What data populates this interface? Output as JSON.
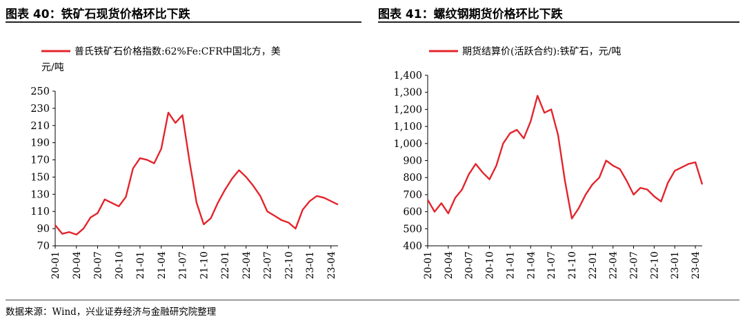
{
  "panels": [
    {
      "title": "图表 40：铁矿石现货价格环比下跌"
    },
    {
      "title": "图表 41：螺纹钢期货价格环比下跌"
    }
  ],
  "source": "数据来源：Wind，兴业证券经济与金融研究院整理",
  "chart_data": [
    {
      "type": "line",
      "legend_line1": "普氏铁矿石价格指数:62%Fe:CFR中国北方，美",
      "legend_line2": "元/吨",
      "legend_position": "top",
      "color": "#e3242b",
      "x_ticks": [
        "20-01",
        "20-04",
        "20-07",
        "20-10",
        "21-01",
        "21-04",
        "21-07",
        "21-10",
        "22-01",
        "22-04",
        "22-07",
        "22-10",
        "23-01",
        "23-04"
      ],
      "y_ticks": [
        "70",
        "90",
        "110",
        "130",
        "150",
        "170",
        "190",
        "210",
        "230",
        "250"
      ],
      "ylim": [
        70,
        250
      ],
      "xlim": [
        "2020-01",
        "2023-05"
      ],
      "series": [
        {
          "x": [
            "2020-01",
            "2020-02",
            "2020-03",
            "2020-04",
            "2020-05",
            "2020-06",
            "2020-07",
            "2020-08",
            "2020-09",
            "2020-10",
            "2020-11",
            "2020-12",
            "2021-01",
            "2021-02",
            "2021-03",
            "2021-04",
            "2021-05",
            "2021-06",
            "2021-07",
            "2021-08",
            "2021-09",
            "2021-10",
            "2021-11",
            "2021-12",
            "2022-01",
            "2022-02",
            "2022-03",
            "2022-04",
            "2022-05",
            "2022-06",
            "2022-07",
            "2022-08",
            "2022-09",
            "2022-10",
            "2022-11",
            "2022-12",
            "2023-01",
            "2023-02",
            "2023-03",
            "2023-04",
            "2023-05"
          ],
          "y": [
            94,
            84,
            86,
            83,
            90,
            103,
            108,
            124,
            120,
            116,
            127,
            160,
            172,
            170,
            166,
            183,
            225,
            213,
            222,
            168,
            120,
            95,
            102,
            120,
            135,
            148,
            158,
            150,
            140,
            128,
            110,
            105,
            100,
            97,
            90,
            112,
            122,
            128,
            126,
            122,
            118
          ]
        }
      ]
    },
    {
      "type": "line",
      "legend_line1": "期货结算价(活跃合约):铁矿石，元/吨",
      "legend_position": "top",
      "color": "#e3242b",
      "x_ticks": [
        "20-01",
        "20-04",
        "20-07",
        "20-10",
        "21-01",
        "21-04",
        "21-07",
        "21-10",
        "22-01",
        "22-04",
        "22-07",
        "22-10",
        "23-01",
        "23-04"
      ],
      "y_ticks": [
        "400",
        "500",
        "600",
        "700",
        "800",
        "900",
        "1,000",
        "1,100",
        "1,200",
        "1,300",
        "1,400"
      ],
      "ylim": [
        400,
        1400
      ],
      "xlim": [
        "2020-01",
        "2023-05"
      ],
      "series": [
        {
          "x": [
            "2020-01",
            "2020-02",
            "2020-03",
            "2020-04",
            "2020-05",
            "2020-06",
            "2020-07",
            "2020-08",
            "2020-09",
            "2020-10",
            "2020-11",
            "2020-12",
            "2021-01",
            "2021-02",
            "2021-03",
            "2021-04",
            "2021-05",
            "2021-06",
            "2021-07",
            "2021-08",
            "2021-09",
            "2021-10",
            "2021-11",
            "2021-12",
            "2022-01",
            "2022-02",
            "2022-03",
            "2022-04",
            "2022-05",
            "2022-06",
            "2022-07",
            "2022-08",
            "2022-09",
            "2022-10",
            "2022-11",
            "2022-12",
            "2023-01",
            "2023-02",
            "2023-03",
            "2023-04",
            "2023-05"
          ],
          "y": [
            670,
            600,
            650,
            590,
            680,
            730,
            820,
            880,
            830,
            790,
            870,
            1000,
            1060,
            1080,
            1030,
            1130,
            1280,
            1180,
            1200,
            1050,
            780,
            560,
            620,
            700,
            760,
            800,
            900,
            870,
            850,
            780,
            700,
            740,
            730,
            690,
            660,
            770,
            840,
            860,
            880,
            890,
            760
          ]
        }
      ]
    }
  ]
}
